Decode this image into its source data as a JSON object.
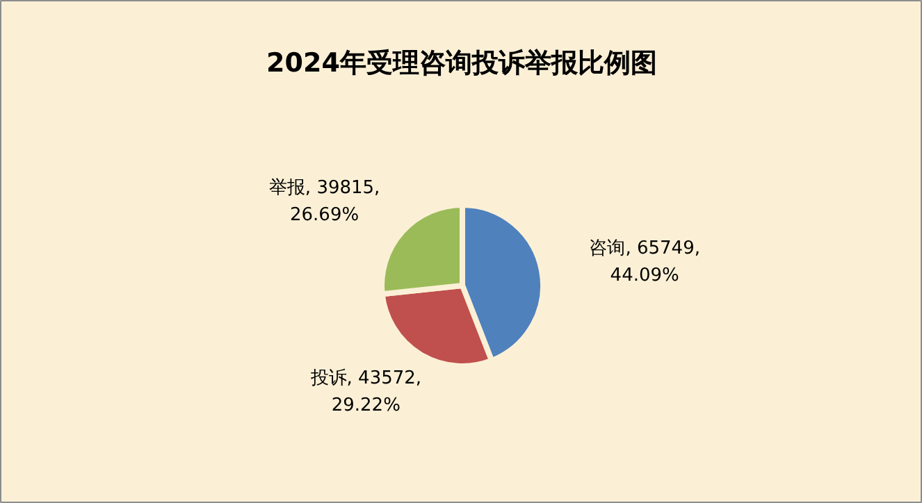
{
  "chart_data": {
    "type": "pie",
    "title": "2024年受理咨询投诉举报比例图",
    "categories": [
      "咨询",
      "投诉",
      "举报"
    ],
    "values": [
      44.09,
      29.22,
      26.69
    ],
    "value_labels": [
      "65749,\n44.09%",
      "43572,\n29.22%",
      "39815,\n26.69%"
    ],
    "colors": [
      "#4f81bd",
      "#c0504d",
      "#9bbb59"
    ]
  }
}
